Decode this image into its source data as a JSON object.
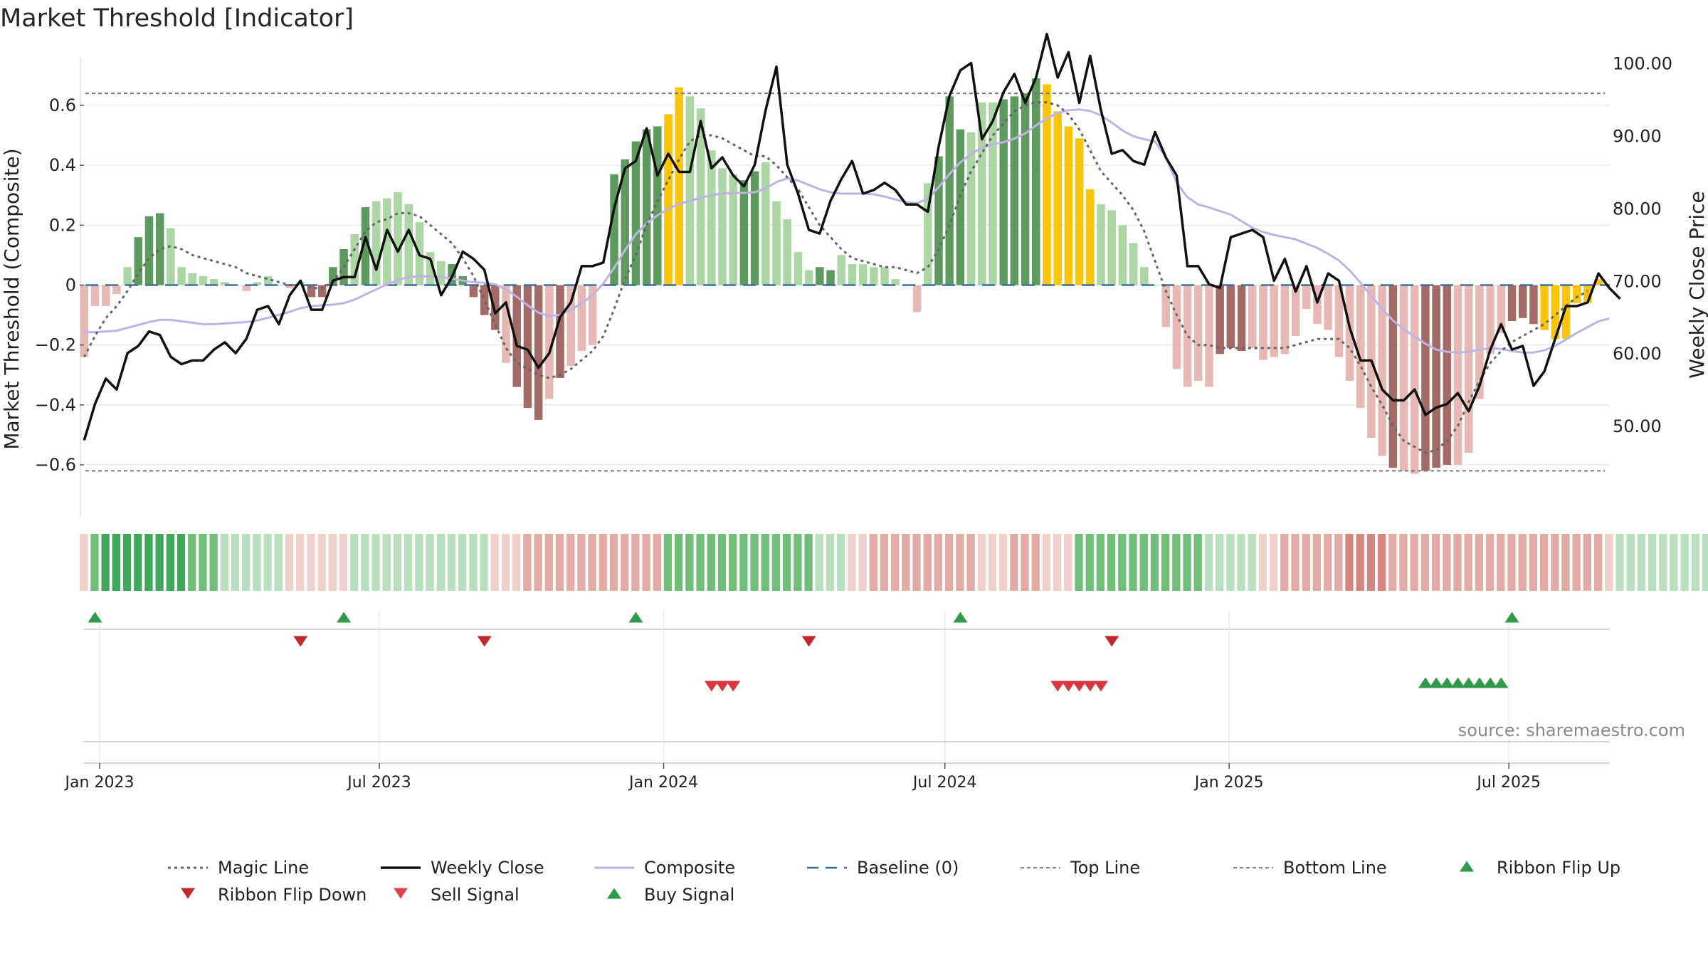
{
  "title": "Market Threshold [Indicator]",
  "source": "source: sharemaestro.com",
  "colors": {
    "strong_green": "#5e9a5e",
    "light_green": "#acd6a4",
    "strong_red": "#a36a66",
    "light_red": "#e8b8b4",
    "extreme": "#f9c40a",
    "magic": "#666666",
    "close": "#111111",
    "composite": "#bdb3e6",
    "baseline": "#3a6fa0",
    "threshold": "#777777",
    "buy": "#2e9a4a",
    "sell": "#d9363f"
  },
  "chart_data": {
    "type": "bar",
    "ylabel_left": "Market Threshold (Composite)",
    "ylabel_right": "Weekly Close Price",
    "yticks_left": [
      "0.6",
      "0.4",
      "0.2",
      "0",
      "−0.2",
      "−0.4",
      "−0.6"
    ],
    "yticks_right": [
      "100.00",
      "90.00",
      "80.00",
      "70.00",
      "60.00",
      "50.00"
    ],
    "xticks": [
      "Jan 2023",
      "Jul 2023",
      "Jan 2024",
      "Jul 2024",
      "Jan 2025",
      "Jul 2025"
    ],
    "ylim_left": [
      -0.72,
      0.76
    ],
    "ylim_right": [
      48,
      106
    ],
    "top_line": 0.64,
    "bottom_line": -0.62,
    "start_date": "2022-12-22",
    "composite_bars": [
      -0.24,
      -0.07,
      -0.07,
      -0.03,
      0.06,
      0.16,
      0.23,
      0.24,
      0.19,
      0.06,
      0.04,
      0.03,
      0.02,
      0.01,
      0.0,
      -0.02,
      0.01,
      0.03,
      0.0,
      -0.01,
      0.01,
      -0.04,
      -0.04,
      0.06,
      0.12,
      0.17,
      0.26,
      0.28,
      0.29,
      0.31,
      0.27,
      0.21,
      0.11,
      0.08,
      0.07,
      0.03,
      -0.04,
      -0.1,
      -0.15,
      -0.26,
      -0.34,
      -0.41,
      -0.45,
      -0.38,
      -0.31,
      -0.27,
      -0.22,
      -0.2,
      0.0,
      0.37,
      0.42,
      0.48,
      0.52,
      0.53,
      0.57,
      0.66,
      0.63,
      0.59,
      0.45,
      0.39,
      0.37,
      0.35,
      0.38,
      0.41,
      0.28,
      0.22,
      0.11,
      0.05,
      0.06,
      0.05,
      0.1,
      0.07,
      0.07,
      0.06,
      0.06,
      0.02,
      0.0,
      -0.09,
      0.34,
      0.43,
      0.63,
      0.52,
      0.51,
      0.61,
      0.61,
      0.62,
      0.63,
      0.64,
      0.69,
      0.67,
      0.58,
      0.53,
      0.49,
      0.32,
      0.27,
      0.25,
      0.2,
      0.14,
      0.06,
      0.0,
      -0.14,
      -0.28,
      -0.34,
      -0.32,
      -0.34,
      -0.23,
      -0.21,
      -0.22,
      -0.21,
      -0.25,
      -0.24,
      -0.23,
      -0.17,
      -0.08,
      -0.13,
      -0.15,
      -0.24,
      -0.32,
      -0.41,
      -0.51,
      -0.57,
      -0.61,
      -0.62,
      -0.63,
      -0.62,
      -0.61,
      -0.6,
      -0.6,
      -0.56,
      -0.38,
      -0.23,
      -0.16,
      -0.12,
      -0.11,
      -0.13,
      -0.15,
      -0.18,
      -0.18,
      -0.06,
      -0.06,
      0.02
    ],
    "bar_tones": "RLLLLSSSLLLLLLRLLLRRLSSSSLSLLLLLRRSSSSSLSSSLSLLLRSSSSSEELLLLLSSLLLLLSSLLLLLLLLRSSSLLLSSSSEEEEELLLLLLLLLLRSSSLLLLLLLLLLLRRSLLSSSLLLLLSSSEEEEEEELLLLLSSLLL",
    "ribbon_levels": [
      -1,
      2,
      3,
      3,
      3,
      3,
      3,
      3,
      3,
      3,
      2,
      2,
      2,
      1,
      1,
      1,
      1,
      1,
      1,
      -1,
      -1,
      -1,
      -1,
      -1,
      -1,
      1,
      1,
      1,
      1,
      1,
      1,
      1,
      1,
      1,
      1,
      1,
      1,
      1,
      -1,
      -1,
      -1,
      -2,
      -2,
      -2,
      -2,
      -2,
      -2,
      -2,
      -2,
      -2,
      -2,
      -2,
      -2,
      -2,
      2,
      2,
      2,
      2,
      2,
      2,
      2,
      2,
      2,
      2,
      2,
      2,
      2,
      2,
      1,
      1,
      1,
      -1,
      -1,
      -2,
      -2,
      -2,
      -2,
      -2,
      -2,
      -2,
      -2,
      -2,
      -2,
      -1,
      -1,
      -1,
      -2,
      -2,
      -2,
      -1,
      -1,
      -1,
      2,
      2,
      2,
      2,
      2,
      2,
      2,
      2,
      2,
      2,
      2,
      2,
      1,
      1,
      1,
      1,
      1,
      -1,
      -1,
      -2,
      -2,
      -2,
      -2,
      -2,
      -2,
      -3,
      -3,
      -3,
      -3,
      -2,
      -2,
      -2,
      -2,
      -2,
      -2,
      -2,
      -2,
      -2,
      -2,
      -2,
      -2,
      -2,
      -2,
      -2,
      -2,
      -2,
      -2,
      -2,
      -2,
      -1,
      1,
      1,
      1,
      1,
      1,
      1,
      1,
      1,
      1,
      1,
      1,
      1,
      1,
      1
    ],
    "magic_line": [
      -0.24,
      -0.17,
      -0.11,
      -0.07,
      -0.02,
      0.04,
      0.09,
      0.12,
      0.13,
      0.12,
      0.1,
      0.09,
      0.08,
      0.07,
      0.06,
      0.04,
      0.03,
      0.02,
      0.01,
      0.0,
      0.0,
      -0.01,
      -0.01,
      0.01,
      0.06,
      0.12,
      0.18,
      0.21,
      0.22,
      0.24,
      0.24,
      0.23,
      0.2,
      0.17,
      0.14,
      0.09,
      0.03,
      -0.05,
      -0.13,
      -0.21,
      -0.26,
      -0.28,
      -0.3,
      -0.31,
      -0.3,
      -0.28,
      -0.25,
      -0.22,
      -0.17,
      -0.08,
      0.02,
      0.1,
      0.2,
      0.28,
      0.35,
      0.42,
      0.48,
      0.5,
      0.5,
      0.49,
      0.47,
      0.45,
      0.43,
      0.43,
      0.4,
      0.36,
      0.32,
      0.26,
      0.2,
      0.16,
      0.12,
      0.09,
      0.08,
      0.07,
      0.06,
      0.06,
      0.05,
      0.04,
      0.06,
      0.12,
      0.2,
      0.3,
      0.38,
      0.44,
      0.5,
      0.54,
      0.58,
      0.6,
      0.61,
      0.61,
      0.6,
      0.57,
      0.52,
      0.45,
      0.38,
      0.34,
      0.3,
      0.25,
      0.18,
      0.08,
      -0.02,
      -0.1,
      -0.17,
      -0.2,
      -0.2,
      -0.21,
      -0.21,
      -0.21,
      -0.21,
      -0.21,
      -0.21,
      -0.21,
      -0.2,
      -0.19,
      -0.18,
      -0.18,
      -0.18,
      -0.21,
      -0.27,
      -0.34,
      -0.4,
      -0.47,
      -0.52,
      -0.54,
      -0.56,
      -0.55,
      -0.52,
      -0.47,
      -0.39,
      -0.32,
      -0.26,
      -0.22,
      -0.19,
      -0.17,
      -0.15,
      -0.13,
      -0.1,
      -0.07,
      -0.04,
      -0.02
    ],
    "weekly_close": [
      48.0,
      53.0,
      56.5,
      55.0,
      60.0,
      61.0,
      63.0,
      62.5,
      59.5,
      58.5,
      59.0,
      59.0,
      60.5,
      61.5,
      60.0,
      62.0,
      66.0,
      66.5,
      64.0,
      68.0,
      70.0,
      66.0,
      66.0,
      70.0,
      70.5,
      70.5,
      76.0,
      71.5,
      77.0,
      74.0,
      77.0,
      73.5,
      73.0,
      68.0,
      70.5,
      74.0,
      73.0,
      71.5,
      65.5,
      67.0,
      61.0,
      60.5,
      58.0,
      60.0,
      65.0,
      67.0,
      72.0,
      72.0,
      72.5,
      80.0,
      85.5,
      86.5,
      91.0,
      84.5,
      87.5,
      85.0,
      85.0,
      92.0,
      85.5,
      87.0,
      84.5,
      83.0,
      86.0,
      93.5,
      99.5,
      86.0,
      82.0,
      77.0,
      76.5,
      81.0,
      84.0,
      86.5,
      82.0,
      82.5,
      83.5,
      82.5,
      80.5,
      80.5,
      79.5,
      88.5,
      95.5,
      99.0,
      100.0,
      89.5,
      92.0,
      96.0,
      98.5,
      94.5,
      98.0,
      104.0,
      98.0,
      101.5,
      94.5,
      101.0,
      93.5,
      87.5,
      88.0,
      86.5,
      86.0,
      90.5,
      87.0,
      84.5,
      72.0,
      72.0,
      69.5,
      69.0,
      76.0,
      76.5,
      77.0,
      76.0,
      70.0,
      73.0,
      68.5,
      72.0,
      67.0,
      71.0,
      70.0,
      63.5,
      59.0,
      59.0,
      55.0,
      53.5,
      53.5,
      55.0,
      51.5,
      52.5,
      53.0,
      54.5,
      52.0,
      55.5,
      60.5,
      64.0,
      60.5,
      61.0,
      55.5,
      57.5,
      62.0,
      66.5,
      66.5,
      67.0,
      71.0,
      69.0,
      67.5
    ],
    "composite_line": [
      62.9,
      62.9,
      63.0,
      63.1,
      63.5,
      63.9,
      64.3,
      64.6,
      64.6,
      64.4,
      64.2,
      64.0,
      64.0,
      64.1,
      64.2,
      64.3,
      64.5,
      64.9,
      65.3,
      65.7,
      66.2,
      66.5,
      66.6,
      66.7,
      66.9,
      67.4,
      68.1,
      68.8,
      69.5,
      70.1,
      70.5,
      70.6,
      70.6,
      70.5,
      70.3,
      70.0,
      69.8,
      69.7,
      69.5,
      68.8,
      67.8,
      66.6,
      65.6,
      65.1,
      65.3,
      66.0,
      66.9,
      68.0,
      69.6,
      71.8,
      74.2,
      76.4,
      77.9,
      79.0,
      79.9,
      80.6,
      81.0,
      81.4,
      81.8,
      82.0,
      82.1,
      82.1,
      82.2,
      82.7,
      83.6,
      84.1,
      83.8,
      83.2,
      82.6,
      82.2,
      82.0,
      82.0,
      82.0,
      81.9,
      81.6,
      81.2,
      80.8,
      80.7,
      81.3,
      82.9,
      84.7,
      86.3,
      87.5,
      88.3,
      88.8,
      89.1,
      89.6,
      90.3,
      91.4,
      92.4,
      93.1,
      93.5,
      93.6,
      93.4,
      92.8,
      91.8,
      90.7,
      89.9,
      89.5,
      89.2,
      87.0,
      83.5,
      81.5,
      80.5,
      80.1,
      79.6,
      79.1,
      78.2,
      77.3,
      76.7,
      76.3,
      76.0,
      75.7,
      75.1,
      74.5,
      73.7,
      72.8,
      71.4,
      69.7,
      67.9,
      66.1,
      64.5,
      63.3,
      62.3,
      61.3,
      60.5,
      60.2,
      60.1,
      60.2,
      60.5,
      60.7,
      60.6,
      60.3,
      60.1,
      60.1,
      60.4,
      61.0,
      61.9,
      62.8,
      63.6,
      64.4,
      64.8
    ]
  },
  "signals": {
    "ribbon_flip_up_dates": [
      "2022-12-29",
      "2023-06-08",
      "2023-12-14",
      "2024-07-11",
      "2025-07-03"
    ],
    "ribbon_flip_down_dates": [
      "2023-05-11",
      "2023-09-07",
      "2024-04-04",
      "2024-10-17"
    ],
    "sell_signal_dates": [
      "2024-02-01",
      "2024-02-08",
      "2024-02-15",
      "2024-09-12",
      "2024-09-19",
      "2024-09-26",
      "2024-10-03",
      "2024-10-10"
    ],
    "buy_signal_dates": [
      "2025-05-08",
      "2025-05-15",
      "2025-05-22",
      "2025-05-29",
      "2025-06-05",
      "2025-06-12",
      "2025-06-19",
      "2025-06-26"
    ]
  },
  "legend": [
    {
      "label": "Magic Line",
      "kind": "dotted",
      "color": "#666666"
    },
    {
      "label": "Weekly Close",
      "kind": "solid",
      "color": "#111111"
    },
    {
      "label": "Composite",
      "kind": "solid",
      "color": "#bdb3e6"
    },
    {
      "label": "Baseline (0)",
      "kind": "dashed",
      "color": "#3a6fa0"
    },
    {
      "label": "Top Line",
      "kind": "thin-dashed",
      "color": "#888888"
    },
    {
      "label": "Bottom Line",
      "kind": "thin-dashed",
      "color": "#888888"
    },
    {
      "label": "Ribbon Flip Up",
      "kind": "triangle-up",
      "color": "#2e9a4a"
    },
    {
      "label": "Ribbon Flip Down",
      "kind": "triangle-down",
      "color": "#c1272d"
    },
    {
      "label": "Sell Signal",
      "kind": "triangle-down",
      "color": "#e0404a"
    },
    {
      "label": "Buy Signal",
      "kind": "triangle-up",
      "color": "#2e9a4a"
    }
  ]
}
